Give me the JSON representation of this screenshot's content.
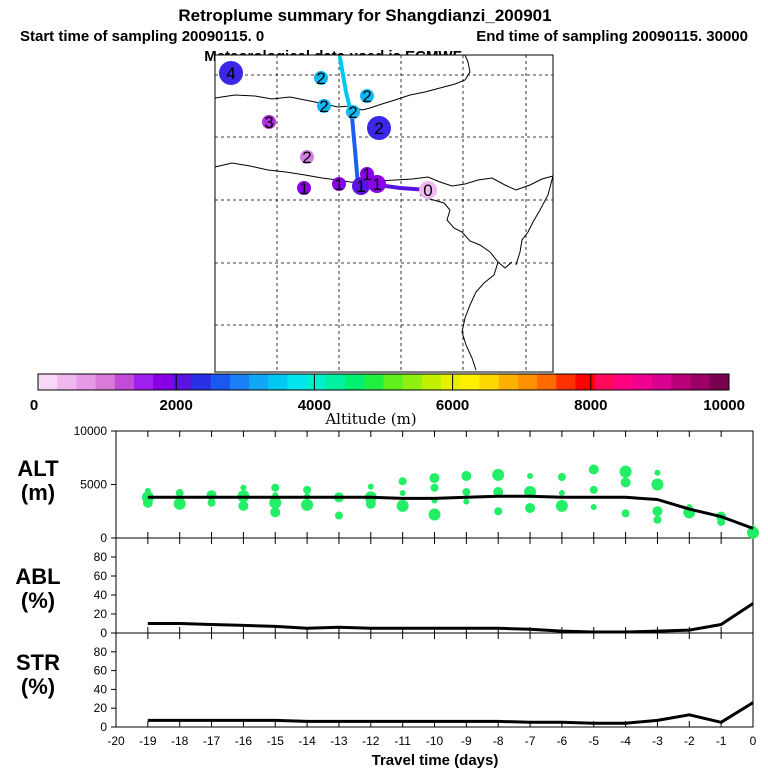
{
  "header": {
    "title": "Retroplume summary for Shangdianzi_200901",
    "start": "Start time of sampling 20090115.    0",
    "end": "End time of sampling 20090115. 30000",
    "met": "Meteorological data used is ECMWF"
  },
  "colorbar": {
    "label": "Altitude (m)",
    "ticks": [
      "0",
      "2000",
      "4000",
      "6000",
      "8000",
      "10000"
    ],
    "colors": [
      "#f7d9f7",
      "#efb8ef",
      "#e59ae5",
      "#d97ad9",
      "#c24cd8",
      "#a020f0",
      "#8a00e6",
      "#5a14e0",
      "#2a30e8",
      "#1a58f0",
      "#1a80f5",
      "#10a8f5",
      "#00c8f0",
      "#00e5ee",
      "#00f0c8",
      "#00f0a0",
      "#00f070",
      "#20f040",
      "#60f020",
      "#90f010",
      "#c0f000",
      "#e6f000",
      "#fff000",
      "#ffd700",
      "#ffb000",
      "#ff9000",
      "#ff6a00",
      "#ff3000",
      "#ff0000",
      "#ff0a5a",
      "#ff007f",
      "#ef0090",
      "#d90090",
      "#b8007a",
      "#9a0066",
      "#7a0050"
    ]
  },
  "map": {
    "markers": [
      {
        "label": "4",
        "color": "#3a28e6",
        "size": "large"
      },
      {
        "label": "2",
        "color": "#10b8f5",
        "size": "small"
      },
      {
        "label": "2",
        "color": "#10b8f5",
        "size": "small"
      },
      {
        "label": "2",
        "color": "#10b8f5",
        "size": "small"
      },
      {
        "label": "2",
        "color": "#10b8f5",
        "size": "small"
      },
      {
        "label": "2",
        "color": "#3a28e6",
        "size": "large"
      },
      {
        "label": "3",
        "color": "#b030e0",
        "size": "small"
      },
      {
        "label": "2",
        "color": "#d080e0",
        "size": "small"
      },
      {
        "label": "1",
        "color": "#8a00e6",
        "size": "small"
      },
      {
        "label": "1",
        "color": "#8a00e6",
        "size": "small"
      },
      {
        "label": "1",
        "color": "#5a14e0",
        "size": "medium"
      },
      {
        "label": "1",
        "color": "#8a00e6",
        "size": "medium"
      },
      {
        "label": "1",
        "color": "#8a00e6",
        "size": "small"
      },
      {
        "label": "0",
        "color": "#f0b8f0",
        "size": "medium"
      }
    ]
  },
  "panels": {
    "alt": {
      "label_line1": "ALT",
      "label_line2": "(m)",
      "yticks": [
        "0",
        "5000",
        "10000"
      ]
    },
    "abl": {
      "label_line1": "ABL",
      "label_line2": "(%)",
      "yticks": [
        "0",
        "20",
        "40",
        "60",
        "80"
      ]
    },
    "str": {
      "label_line1": "STR",
      "label_line2": "(%)",
      "yticks": [
        "0",
        "20",
        "40",
        "60",
        "80"
      ]
    }
  },
  "chart_data": {
    "type": "line",
    "xlabel": "Travel time (days)",
    "xlim": [
      -20,
      0
    ],
    "x_tick_labels": [
      "-20",
      "-19",
      "-18",
      "-17",
      "-16",
      "-15",
      "-14",
      "-13",
      "-12",
      "-11",
      "-10",
      "-9",
      "-8",
      "-7",
      "-6",
      "-5",
      "-4",
      "-3",
      "-2",
      "-1",
      "0"
    ],
    "alt": {
      "ylabel": "ALT (m)",
      "ylim": [
        0,
        10000
      ],
      "x": [
        -19,
        -18,
        -17,
        -16,
        -15,
        -14,
        -13,
        -12,
        -11,
        -10,
        -9,
        -8,
        -7,
        -6,
        -5,
        -4,
        -3,
        -2,
        -1,
        0
      ],
      "mean": [
        3800,
        3800,
        3800,
        3800,
        3800,
        3800,
        3800,
        3800,
        3700,
        3700,
        3800,
        3900,
        3900,
        3800,
        3800,
        3800,
        3600,
        2700,
        2000,
        900
      ],
      "points": [
        {
          "x": -19,
          "y": 4400
        },
        {
          "x": -19,
          "y": 3800
        },
        {
          "x": -19,
          "y": 3300
        },
        {
          "x": -18,
          "y": 4200
        },
        {
          "x": -18,
          "y": 3600
        },
        {
          "x": -18,
          "y": 3200
        },
        {
          "x": -17,
          "y": 4000
        },
        {
          "x": -17,
          "y": 3300
        },
        {
          "x": -16,
          "y": 4700
        },
        {
          "x": -16,
          "y": 3900
        },
        {
          "x": -16,
          "y": 3000
        },
        {
          "x": -15,
          "y": 4700
        },
        {
          "x": -15,
          "y": 4000
        },
        {
          "x": -15,
          "y": 3300
        },
        {
          "x": -15,
          "y": 2400
        },
        {
          "x": -14,
          "y": 4500
        },
        {
          "x": -14,
          "y": 3900
        },
        {
          "x": -14,
          "y": 3100
        },
        {
          "x": -13,
          "y": 3800
        },
        {
          "x": -13,
          "y": 2100
        },
        {
          "x": -12,
          "y": 4800
        },
        {
          "x": -12,
          "y": 3800
        },
        {
          "x": -12,
          "y": 3200
        },
        {
          "x": -11,
          "y": 5300
        },
        {
          "x": -11,
          "y": 4200
        },
        {
          "x": -11,
          "y": 3000
        },
        {
          "x": -10,
          "y": 5600
        },
        {
          "x": -10,
          "y": 4700
        },
        {
          "x": -10,
          "y": 3500
        },
        {
          "x": -10,
          "y": 2200
        },
        {
          "x": -9,
          "y": 5800
        },
        {
          "x": -9,
          "y": 4300
        },
        {
          "x": -9,
          "y": 3400
        },
        {
          "x": -8,
          "y": 5900
        },
        {
          "x": -8,
          "y": 4300
        },
        {
          "x": -8,
          "y": 2500
        },
        {
          "x": -7,
          "y": 5800
        },
        {
          "x": -7,
          "y": 4300
        },
        {
          "x": -7,
          "y": 2800
        },
        {
          "x": -6,
          "y": 5700
        },
        {
          "x": -6,
          "y": 4200
        },
        {
          "x": -6,
          "y": 3000
        },
        {
          "x": -5,
          "y": 6400
        },
        {
          "x": -5,
          "y": 4500
        },
        {
          "x": -5,
          "y": 2900
        },
        {
          "x": -4,
          "y": 6200
        },
        {
          "x": -4,
          "y": 5200
        },
        {
          "x": -4,
          "y": 2300
        },
        {
          "x": -3,
          "y": 6100
        },
        {
          "x": -3,
          "y": 5000
        },
        {
          "x": -3,
          "y": 2500
        },
        {
          "x": -3,
          "y": 1700
        },
        {
          "x": -2,
          "y": 2900
        },
        {
          "x": -2,
          "y": 2400
        },
        {
          "x": -1,
          "y": 2000
        },
        {
          "x": -1,
          "y": 1500
        },
        {
          "x": 0,
          "y": 900
        },
        {
          "x": 0,
          "y": 500
        }
      ]
    },
    "abl": {
      "ylabel": "ABL (%)",
      "ylim": [
        0,
        100
      ],
      "x": [
        -19,
        -18,
        -17,
        -16,
        -15,
        -14,
        -13,
        -12,
        -11,
        -10,
        -9,
        -8,
        -7,
        -6,
        -5,
        -4,
        -3,
        -2,
        -1,
        0
      ],
      "values": [
        10,
        10,
        9,
        8,
        7,
        5,
        6,
        5,
        5,
        5,
        5,
        5,
        4,
        2,
        1,
        1,
        2,
        3,
        9,
        31
      ]
    },
    "str": {
      "ylabel": "STR (%)",
      "ylim": [
        0,
        100
      ],
      "x": [
        -19,
        -18,
        -17,
        -16,
        -15,
        -14,
        -13,
        -12,
        -11,
        -10,
        -9,
        -8,
        -7,
        -6,
        -5,
        -4,
        -3,
        -2,
        -1,
        0
      ],
      "values": [
        7,
        7,
        7,
        7,
        7,
        6,
        6,
        6,
        6,
        6,
        6,
        6,
        5,
        5,
        4,
        4,
        7,
        13,
        5,
        26
      ]
    }
  }
}
